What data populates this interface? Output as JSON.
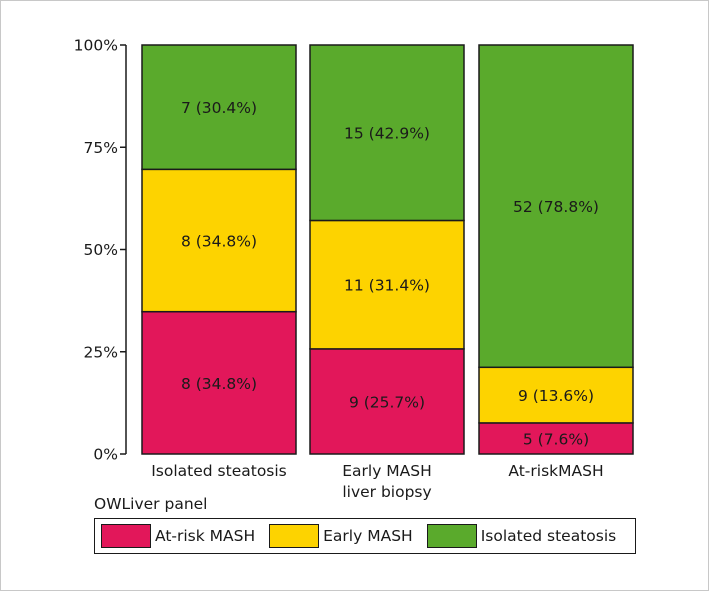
{
  "chart_data": {
    "type": "bar",
    "stacked": true,
    "categories": [
      [
        "Isolated steatosis"
      ],
      [
        "Early MASH",
        "liver biopsy"
      ],
      [
        "At-riskMASH"
      ]
    ],
    "yticks": [
      "0%",
      "25%",
      "50%",
      "75%",
      "100%"
    ],
    "ylim": [
      0,
      100
    ],
    "series": [
      {
        "name": "At-risk MASH",
        "color": "#e2175a",
        "values": [
          34.8,
          25.7,
          7.6
        ],
        "labels": [
          "8 (34.8%)",
          "9 (25.7%)",
          "5 (7.6%)"
        ]
      },
      {
        "name": "Early MASH",
        "color": "#fdd300",
        "values": [
          34.8,
          31.4,
          13.6
        ],
        "labels": [
          "8 (34.8%)",
          "11 (31.4%)",
          "9 (13.6%)"
        ]
      },
      {
        "name": "Isolated steatosis",
        "color": "#5aaa2c",
        "values": [
          30.4,
          42.9,
          78.8
        ],
        "labels": [
          "7 (30.4%)",
          "15 (42.9%)",
          "52 (78.8%)"
        ]
      }
    ],
    "legend_title": "OWLiver panel",
    "legend_position": "bottom"
  }
}
